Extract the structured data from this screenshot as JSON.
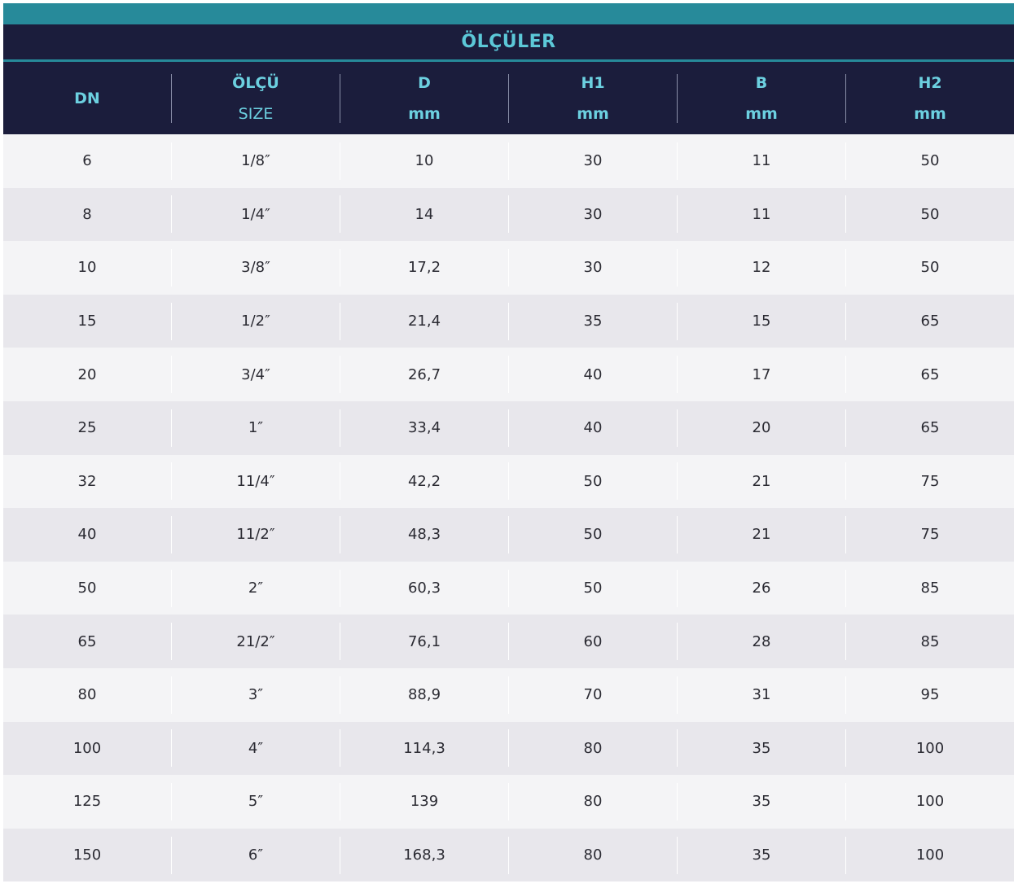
{
  "table": {
    "title": "ÖLÇÜLER",
    "headers": [
      {
        "top": "DN",
        "bottom": ""
      },
      {
        "top": "ÖLÇÜ",
        "bottom": "SIZE"
      },
      {
        "top": "D",
        "bottom": "mm"
      },
      {
        "top": "H1",
        "bottom": "mm"
      },
      {
        "top": "B",
        "bottom": "mm"
      },
      {
        "top": "H2",
        "bottom": "mm"
      }
    ],
    "rows": [
      [
        "6",
        "1/8″",
        "10",
        "30",
        "11",
        "50"
      ],
      [
        "8",
        "1/4″",
        "14",
        "30",
        "11",
        "50"
      ],
      [
        "10",
        "3/8″",
        "17,2",
        "30",
        "12",
        "50"
      ],
      [
        "15",
        "1/2″",
        "21,4",
        "35",
        "15",
        "65"
      ],
      [
        "20",
        "3/4″",
        "26,7",
        "40",
        "17",
        "65"
      ],
      [
        "25",
        "1″",
        "33,4",
        "40",
        "20",
        "65"
      ],
      [
        "32",
        "11/4″",
        "42,2",
        "50",
        "21",
        "75"
      ],
      [
        "40",
        "11/2″",
        "48,3",
        "50",
        "21",
        "75"
      ],
      [
        "50",
        "2″",
        "60,3",
        "50",
        "26",
        "85"
      ],
      [
        "65",
        "21/2″",
        "76,1",
        "60",
        "28",
        "85"
      ],
      [
        "80",
        "3″",
        "88,9",
        "70",
        "31",
        "95"
      ],
      [
        "100",
        "4″",
        "114,3",
        "80",
        "35",
        "100"
      ],
      [
        "125",
        "5″",
        "139",
        "80",
        "35",
        "100"
      ],
      [
        "150",
        "6″",
        "168,3",
        "80",
        "35",
        "100"
      ]
    ]
  },
  "colors": {
    "accent_teal": "#278a9a",
    "header_navy": "#1b1d3c",
    "header_text": "#6cd0e0",
    "row_light": "#f4f4f6",
    "row_dark": "#e8e7ec"
  }
}
